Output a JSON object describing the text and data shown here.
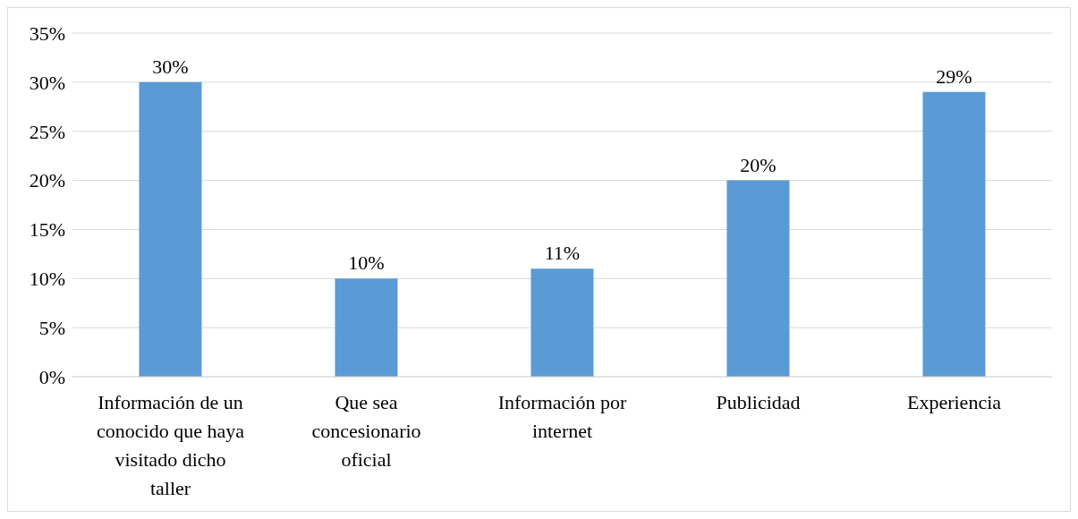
{
  "chart_data": {
    "type": "bar",
    "categories": [
      "Información de un conocido que haya visitado dicho taller",
      "Que sea concesionario oficial",
      "Información por internet",
      "Publicidad",
      "Experiencia"
    ],
    "values": [
      30,
      10,
      11,
      20,
      29
    ],
    "value_labels": [
      "30%",
      "10%",
      "11%",
      "20%",
      "29%"
    ],
    "color": "#5b9bd5",
    "ylim": [
      0,
      35
    ],
    "yticks": [
      {
        "value": 0,
        "label": "0%"
      },
      {
        "value": 5,
        "label": "5%"
      },
      {
        "value": 10,
        "label": "10%"
      },
      {
        "value": 15,
        "label": "15%"
      },
      {
        "value": 20,
        "label": "20%"
      },
      {
        "value": 25,
        "label": "25%"
      },
      {
        "value": 30,
        "label": "30%"
      },
      {
        "value": 35,
        "label": "35%"
      }
    ],
    "grid": "y"
  }
}
